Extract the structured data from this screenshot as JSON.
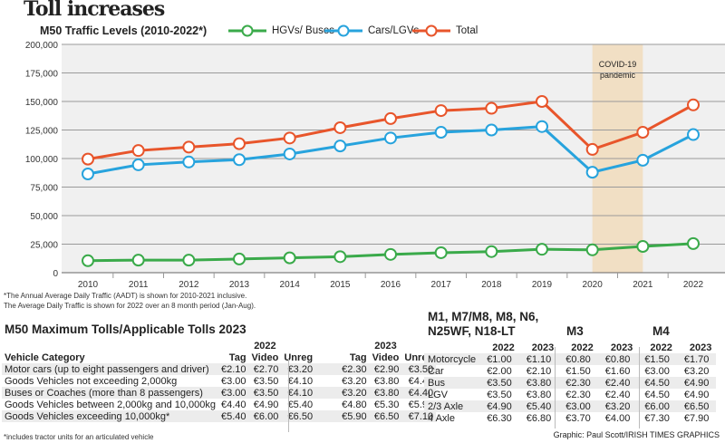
{
  "title": "Toll increases",
  "chart_data": {
    "type": "line",
    "title": "M50 Traffic Levels (2010-2022*)",
    "x": [
      2010,
      2011,
      2012,
      2013,
      2014,
      2015,
      2016,
      2017,
      2018,
      2019,
      2020,
      2021,
      2022
    ],
    "xlabels": [
      "2010",
      "2011",
      "2012",
      "2013",
      "2014",
      "2015",
      "2016",
      "2017",
      "2018",
      "2019",
      "2020",
      "2021",
      "2022"
    ],
    "ylim": [
      0,
      200000
    ],
    "yticks": [
      0,
      25000,
      50000,
      75000,
      100000,
      125000,
      150000,
      175000,
      200000
    ],
    "ytick_labels": [
      "0",
      "25,000",
      "50,000",
      "75,000",
      "100,000",
      "125,000",
      "150,000",
      "175,000",
      "200,000"
    ],
    "grid": true,
    "legend": "top",
    "series": [
      {
        "name": "HGVs/ Buses",
        "color": "#3aaa4a",
        "values": [
          10500,
          11000,
          11000,
          12000,
          13000,
          14000,
          16000,
          17500,
          18500,
          20500,
          20000,
          23000,
          25500
        ]
      },
      {
        "name": "Cars/LGVs",
        "color": "#27a3dd",
        "values": [
          86500,
          94500,
          97000,
          99000,
          104000,
          111000,
          118000,
          123000,
          125000,
          128000,
          88000,
          98500,
          121000
        ]
      },
      {
        "name": "Total",
        "color": "#e8552b",
        "values": [
          99500,
          107000,
          110000,
          113000,
          118000,
          127000,
          135000,
          142000,
          144000,
          150000,
          108000,
          123000,
          147000
        ]
      }
    ],
    "annotation": {
      "label1": "COVID-19",
      "label2": "pandemic",
      "from": 2020,
      "to": 2021,
      "color": "#f1dfc4"
    }
  },
  "notes": [
    "*The Annual Average Daily Traffic (AADT) is shown for 2010-2021 inclusive.",
    "The Average Daily Traffic is shown for 2022 over an 8 month period (Jan-Aug)."
  ],
  "m50": {
    "heading": "M50 Maximum Tolls/Applicable Tolls 2023",
    "year1": "2022",
    "year2": "2023",
    "cols": [
      "Vehicle Category",
      "Tag",
      "Video",
      "Unreg",
      "Tag",
      "Video",
      "Unreg"
    ],
    "rows": [
      [
        "Motor cars (up to eight passengers and driver)",
        "€2.10",
        "€2.70",
        "€3.20",
        "€2.30",
        "€2.90",
        "€3.50"
      ],
      [
        "Goods Vehicles not exceeding 2,000kg",
        "€3.00",
        "€3.50",
        "€4.10",
        "€3.20",
        "€3.80",
        "€4.40"
      ],
      [
        "Buses or Coaches (more than 8 passengers)",
        "€3.00",
        "€3.50",
        "€4.10",
        "€3.20",
        "€3.80",
        "€4.40"
      ],
      [
        "Goods Vehicles between 2,000kg and 10,000kg",
        "€4.40",
        "€4.90",
        "€5.40",
        "€4.80",
        "€5.30",
        "€5.90"
      ],
      [
        "Goods Vehicles exceeding 10,000kg*",
        "€5.40",
        "€6.00",
        "€6.50",
        "€5.90",
        "€6.50",
        "€7.10"
      ]
    ],
    "footnote": "*includes tractor units for an articulated vehicle"
  },
  "other": {
    "heading1": "M1, M7/M8, M8, N6,",
    "heading2": "N25WF, N18-LT",
    "m3": "M3",
    "m4": "M4",
    "cols": [
      "",
      "2022",
      "2023",
      "2022",
      "2023",
      "2022",
      "2023"
    ],
    "rows": [
      [
        "Motorcycle",
        "€1.00",
        "€1.10",
        "€0.80",
        "€0.80",
        "€1.50",
        "€1.70"
      ],
      [
        "Car",
        "€2.00",
        "€2.10",
        "€1.50",
        "€1.60",
        "€3.00",
        "€3.20"
      ],
      [
        "Bus",
        "€3.50",
        "€3.80",
        "€2.30",
        "€2.40",
        "€4.50",
        "€4.90"
      ],
      [
        "LGV",
        "€3.50",
        "€3.80",
        "€2.30",
        "€2.40",
        "€4.50",
        "€4.90"
      ],
      [
        "2/3 Axle",
        "€4.90",
        "€5.40",
        "€3.00",
        "€3.20",
        "€6.00",
        "€6.50"
      ],
      [
        "4 Axle",
        "€6.30",
        "€6.80",
        "€3.70",
        "€4.00",
        "€7.30",
        "€7.90"
      ]
    ]
  },
  "credit": "Graphic: Paul Scott/IRISH TIMES GRAPHICS"
}
